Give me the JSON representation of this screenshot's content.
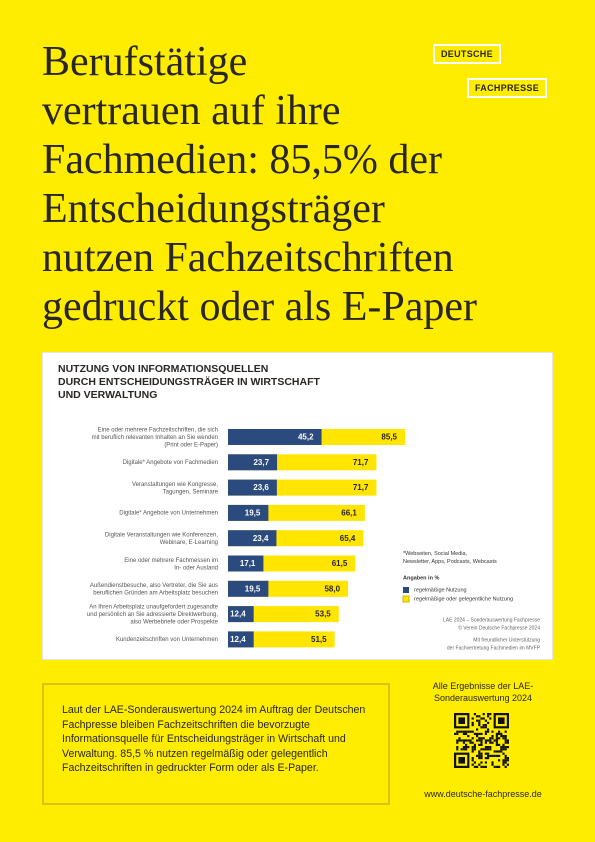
{
  "header": {
    "title_lines": [
      "Berufstätige",
      "vertrauen auf ihre",
      "Fachmedien: 85,5% der",
      "Entscheidungsträger",
      "nutzen Fachzeitschriften",
      "gedruckt oder als E-Paper"
    ]
  },
  "logo": {
    "line1": "DEUTSCHE",
    "line2": "FACHPRESSE"
  },
  "chart_data": {
    "type": "bar",
    "orientation": "horizontal",
    "title": "NUTZUNG VON INFORMATIONSQUELLEN\nDURCH ENTSCHEIDUNGSTRÄGER IN WIRTSCHAFT\nUND VERWALTUNG",
    "categories": [
      "Eine oder mehrere Fachzeitschriften, die sich\nmit beruflich relevanten Inhalten an Sie wenden\n(Print oder E-Paper)",
      "Digitale* Angebote von Fachmedien",
      "Veranstaltungen wie Kongresse,\nTagungen, Seminare",
      "Digitale* Angebote von Unternehmen",
      "Digitale Veranstaltungen wie Konferenzen,\nWebinare, E-Learning",
      "Eine oder mehrere Fachmessen im\nIn- oder Ausland",
      "Außendienstbesuche, also Vertreter, die Sie aus\nberuflichen Gründen am Arbeitsplatz besuchen",
      "An Ihren Arbeitsplatz unaufgefordert zugesandte\nund persönlich an Sie adressierte Direktwerbung,\nalso Werbebriefe oder Prospekte",
      "Kundenzeitschriften von Unternehmen"
    ],
    "series": [
      {
        "name": "regelmäßige Nutzung",
        "color": "#2b4a7e",
        "values": [
          45.2,
          23.7,
          23.6,
          19.5,
          23.4,
          17.1,
          19.5,
          12.4,
          12.4
        ],
        "value_labels": [
          "45,2",
          "23,7",
          "23,6",
          "19,5",
          "23,4",
          "17,1",
          "19,5",
          "12,4",
          "12,4"
        ]
      },
      {
        "name": "regelmäßige oder gelegentliche Nutzung",
        "color": "#ffe500",
        "values": [
          85.5,
          71.7,
          71.7,
          66.1,
          65.4,
          61.5,
          58.0,
          53.5,
          51.5
        ],
        "value_labels": [
          "85,5",
          "71,7",
          "71,7",
          "66,1",
          "65,4",
          "61,5",
          "58,0",
          "53,5",
          "51,5"
        ]
      }
    ],
    "footnote": "*Webseiten, Social Media,\nNewsletter, Apps, Podcasts, Webcasts",
    "legend_title": "Angaben in %",
    "source": [
      "LAE 2024 – Sonderauswertung Fachpresse",
      "© Verein Deutsche Fachpresse 2024",
      "Mit freundlicher Unterstützung",
      "der Fachvertretung Fachmedien im MVFP"
    ]
  },
  "infobox": {
    "text": "Laut der LAE-Sonderauswertung 2024 im Auftrag der Deutschen Fachpresse bleiben Fachzeitschriften die bevorzugte Informationsquelle für Entscheidungsträger in Wirtschaft und Verwaltung. 85,5 % nutzen regelmäßig oder gelegentlich Fachzeitschriften in gedruckter Form oder als E-Paper."
  },
  "sidebar": {
    "heading": "Alle Ergebnisse der LAE-\nSonderauswertung 2024",
    "url": "www.deutsche-fachpresse.de"
  }
}
